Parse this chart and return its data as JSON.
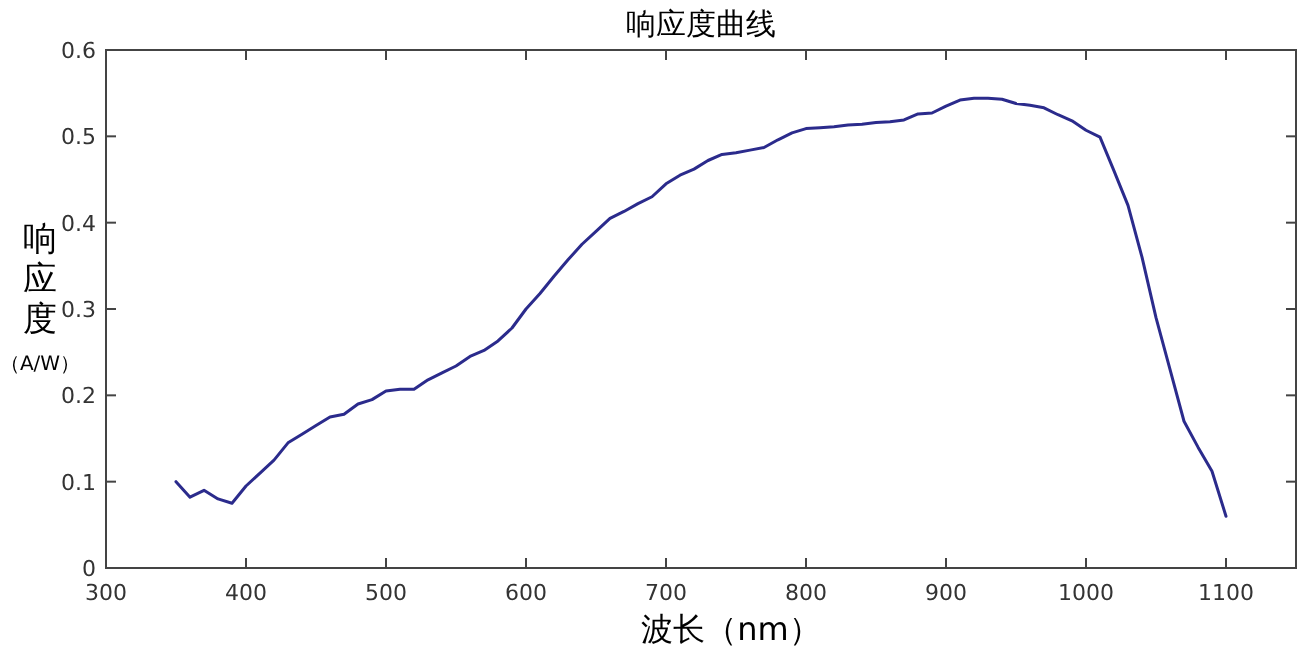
{
  "chart_data": {
    "type": "line",
    "title": "响应度曲线",
    "xlabel": "波长（nm）",
    "ylabel": "响应度（A/W）",
    "xlim": [
      300,
      1150
    ],
    "xticks": [
      300,
      400,
      500,
      600,
      700,
      800,
      900,
      1000,
      1100
    ],
    "ylim": [
      0,
      0.6
    ],
    "yticks": [
      0,
      0.1,
      0.2,
      0.3,
      0.4,
      0.5,
      0.6
    ],
    "grid": false,
    "marker": "none",
    "line_style": "solid",
    "x": [
      350,
      360,
      370,
      380,
      390,
      400,
      410,
      420,
      430,
      440,
      450,
      460,
      470,
      480,
      490,
      500,
      510,
      520,
      530,
      540,
      550,
      560,
      570,
      580,
      590,
      600,
      610,
      620,
      630,
      640,
      650,
      660,
      670,
      680,
      690,
      700,
      710,
      720,
      730,
      740,
      750,
      760,
      770,
      780,
      790,
      800,
      810,
      820,
      830,
      840,
      850,
      860,
      870,
      880,
      890,
      900,
      910,
      920,
      930,
      940,
      950,
      960,
      970,
      980,
      990,
      1000,
      1010,
      1020,
      1030,
      1040,
      1050,
      1060,
      1070,
      1080,
      1090,
      1100
    ],
    "series": [
      {
        "color": "#2b2b8c",
        "values": [
          0.1,
          0.082,
          0.09,
          0.08,
          0.075,
          0.095,
          0.11,
          0.125,
          0.145,
          0.155,
          0.165,
          0.175,
          0.178,
          0.19,
          0.195,
          0.205,
          0.207,
          0.207,
          0.218,
          0.226,
          0.234,
          0.245,
          0.252,
          0.263,
          0.278,
          0.3,
          0.318,
          0.338,
          0.357,
          0.375,
          0.39,
          0.405,
          0.413,
          0.422,
          0.43,
          0.445,
          0.455,
          0.462,
          0.472,
          0.479,
          0.481,
          0.484,
          0.487,
          0.496,
          0.504,
          0.509,
          0.51,
          0.511,
          0.513,
          0.514,
          0.516,
          0.517,
          0.519,
          0.526,
          0.527,
          0.535,
          0.542,
          0.544,
          0.544,
          0.543,
          0.538,
          0.536,
          0.533,
          0.525,
          0.518,
          0.507,
          0.499,
          0.46,
          0.42,
          0.36,
          0.29,
          0.23,
          0.17,
          0.14,
          0.112,
          0.06
        ]
      }
    ]
  }
}
